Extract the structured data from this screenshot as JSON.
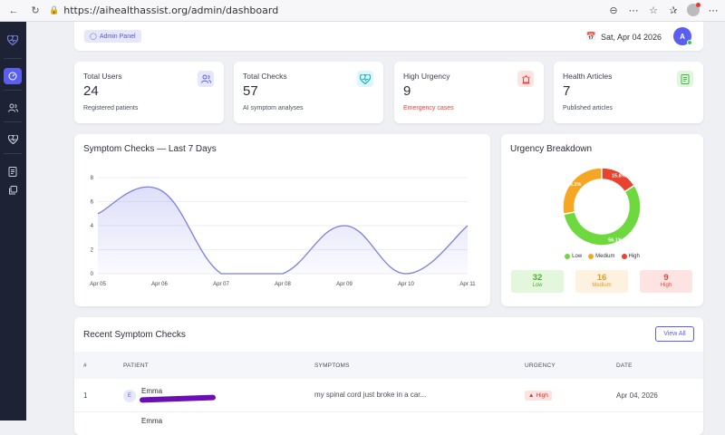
{
  "browser": {
    "url": "https://aihealthassist.org/admin/dashboard"
  },
  "header": {
    "badge": "Admin Panel",
    "date": "Sat, Apr 04 2026",
    "avatar_initial": "A"
  },
  "stats": [
    {
      "label": "Total Users",
      "value": "24",
      "sub": "Registered patients",
      "icon": "users-icon",
      "color": "#5b5ff0",
      "bg": "#e6e7fb"
    },
    {
      "label": "Total Checks",
      "value": "57",
      "sub": "AI symptom analyses",
      "icon": "heart-pulse-icon",
      "color": "#19b3c9",
      "bg": "#dff6fa"
    },
    {
      "label": "High Urgency",
      "value": "9",
      "sub": "Emergency cases",
      "icon": "alert-icon",
      "color": "#e2443c",
      "bg": "#fde4e2"
    },
    {
      "label": "Health Articles",
      "value": "7",
      "sub": "Published articles",
      "icon": "document-icon",
      "color": "#3cb84a",
      "bg": "#e2f6dc"
    }
  ],
  "line_chart": {
    "chart_data": {
      "type": "line",
      "title": "Symptom Checks — Last 7 Days",
      "categories": [
        "Apr 05",
        "Apr 06",
        "Apr 07",
        "Apr 08",
        "Apr 09",
        "Apr 10",
        "Apr 11"
      ],
      "values": [
        5,
        7,
        0,
        0,
        4,
        0,
        4
      ],
      "yticks": [
        0,
        2,
        4,
        6,
        8
      ],
      "ylim": [
        0,
        8
      ],
      "color": "#7b7fe0"
    }
  },
  "urgency": {
    "title": "Urgency Breakdown",
    "chart_data": {
      "type": "pie",
      "labels": [
        "Low",
        "Medium",
        "High"
      ],
      "values": [
        56.1,
        28.1,
        15.8
      ],
      "value_labels": [
        "56.1%",
        "28.1%",
        "15.8%"
      ],
      "colors": [
        "#6dd93e",
        "#f5a623",
        "#e8432f"
      ]
    },
    "boxes": [
      {
        "count": "32",
        "label": "Low",
        "color": "#4caf2e",
        "bg": "#e3f7dc"
      },
      {
        "count": "16",
        "label": "Medium",
        "color": "#e89a1c",
        "bg": "#fdf1e0"
      },
      {
        "count": "9",
        "label": "High",
        "color": "#e2443c",
        "bg": "#fde4e2"
      }
    ]
  },
  "recent": {
    "title": "Recent Symptom Checks",
    "view_all": "View All",
    "columns": [
      "#",
      "PATIENT",
      "SYMPTOMS",
      "URGENCY",
      "DATE"
    ],
    "rows": [
      {
        "num": "1",
        "initial": "E",
        "name": "Emma",
        "symptoms": "my spinal cord just broke in a car...",
        "urgency": "High",
        "date": "Apr 04, 2026"
      },
      {
        "name": "Emma"
      }
    ]
  }
}
